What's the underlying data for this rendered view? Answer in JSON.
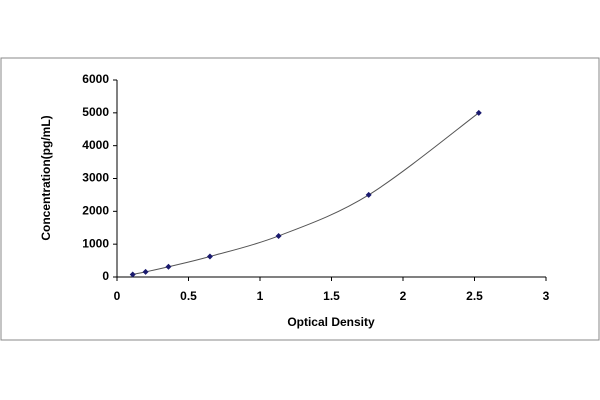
{
  "chart_data": {
    "type": "scatter",
    "x_label": "Optical Density",
    "y_label": "Concentration(pg/mL)",
    "x": [
      0.11,
      0.2,
      0.36,
      0.65,
      1.13,
      1.76,
      2.53
    ],
    "series": [
      {
        "color": "#1a1a6e",
        "values": [
          78,
          156,
          312,
          625,
          1250,
          2500,
          5000
        ]
      }
    ],
    "trendline": true,
    "trendline_color": "#555555",
    "xlim": [
      0,
      3
    ],
    "xticks": [
      0,
      0.5,
      1,
      1.5,
      2,
      2.5,
      3
    ],
    "ylim": [
      0,
      6000
    ],
    "yticks": [
      0,
      1000,
      2000,
      3000,
      4000,
      5000,
      6000
    ],
    "grid": false
  }
}
